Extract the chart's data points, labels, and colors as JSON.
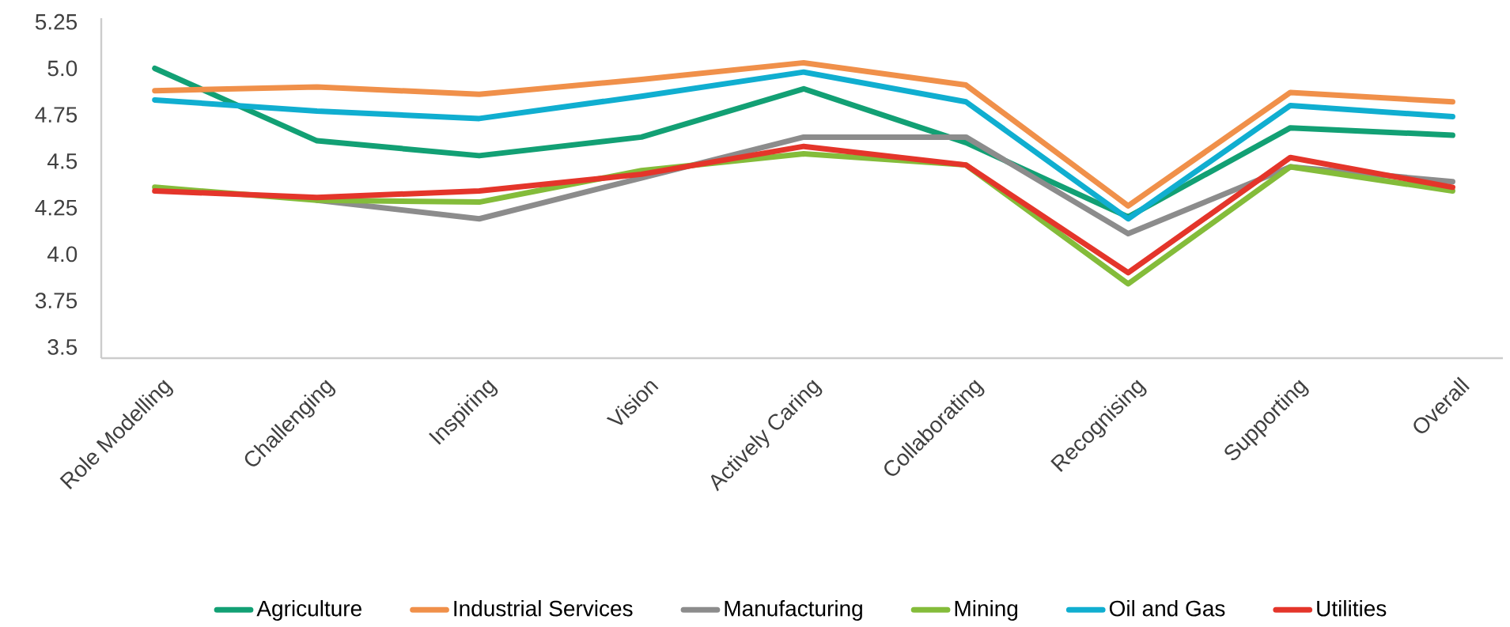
{
  "chart_data": {
    "type": "line",
    "categories": [
      "Role Modelling",
      "Challenging",
      "Inspiring",
      "Vision",
      "Actively Caring",
      "Collaborating",
      "Recognising",
      "Supporting",
      "Overall"
    ],
    "series": [
      {
        "name": "Agriculture",
        "color": "#12a074",
        "values": [
          5.0,
          4.61,
          4.53,
          4.63,
          4.89,
          4.6,
          4.2,
          4.68,
          4.64
        ]
      },
      {
        "name": "Industrial Services",
        "color": "#f0904a",
        "values": [
          4.88,
          4.9,
          4.86,
          4.94,
          5.03,
          4.91,
          4.26,
          4.87,
          4.82
        ]
      },
      {
        "name": "Manufacturing",
        "color": "#8c8c8c",
        "values": [
          null,
          4.29,
          4.19,
          4.41,
          4.63,
          4.63,
          4.11,
          4.47,
          4.39
        ]
      },
      {
        "name": "Mining",
        "color": "#84bc3a",
        "values": [
          4.36,
          4.29,
          4.28,
          4.45,
          4.54,
          4.48,
          3.84,
          4.47,
          4.34
        ]
      },
      {
        "name": "Oil and Gas",
        "color": "#10aed0",
        "values": [
          4.83,
          4.77,
          4.73,
          4.85,
          4.98,
          4.82,
          4.19,
          4.8,
          4.74
        ]
      },
      {
        "name": "Utilities",
        "color": "#e4352a",
        "values": [
          4.34,
          4.305,
          4.34,
          4.43,
          4.58,
          4.48,
          3.9,
          4.52,
          4.36
        ]
      }
    ],
    "ylim": [
      3.44,
      5.27
    ],
    "yticks": [
      {
        "value": 3.5,
        "label": "3.5"
      },
      {
        "value": 3.75,
        "label": "3.75"
      },
      {
        "value": 4.0,
        "label": "4.0"
      },
      {
        "value": 4.25,
        "label": "4.25"
      },
      {
        "value": 4.5,
        "label": "4.5"
      },
      {
        "value": 4.75,
        "label": "4.75"
      },
      {
        "value": 5.0,
        "label": "5.0"
      },
      {
        "value": 5.25,
        "label": "5.25"
      }
    ],
    "grid": false,
    "legend": "bottom",
    "marker": "none",
    "line_style": "solid"
  }
}
